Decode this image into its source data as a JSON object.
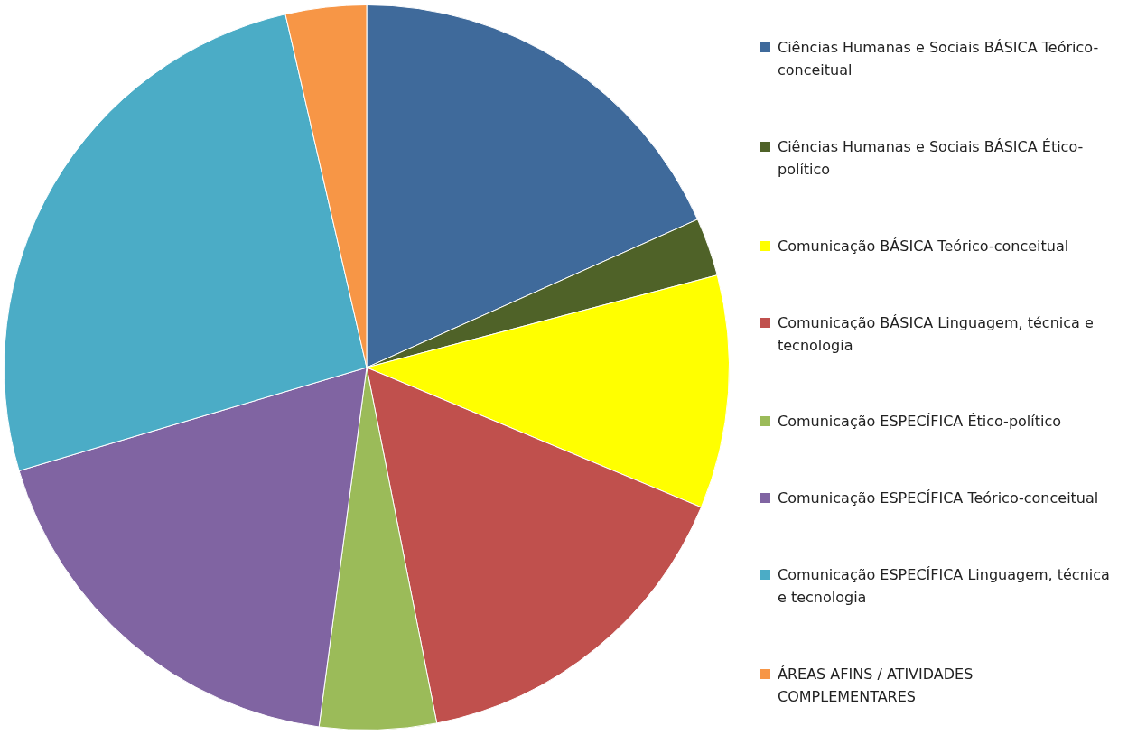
{
  "chart_data": {
    "type": "pie",
    "legend": "right",
    "categories": [
      "Ciências Humanas e Sociais BÁSICA Teórico- conceitual",
      "Ciências Humanas e Sociais BÁSICA Ético-político",
      "Comunicação BÁSICA Teórico-conceitual",
      "Comunicação BÁSICA Linguagem, técnica e tecnologia",
      "Comunicação ESPECÍFICA Ético-político",
      "Comunicação ESPECÍFICA Teórico-conceitual",
      "Comunicação ESPECÍFICA Linguagem, técnica e tecnologia",
      "ÁREAS AFINS / ATIVIDADES COMPLEMENTARES"
    ],
    "values": [
      18.3,
      2.6,
      10.4,
      15.6,
      5.2,
      18.3,
      26.0,
      3.6
    ],
    "colors": [
      "#3f6a9b",
      "#4f6228",
      "#ffff00",
      "#c0504d",
      "#9bbb59",
      "#8064a2",
      "#4bacc6",
      "#f79646"
    ]
  }
}
